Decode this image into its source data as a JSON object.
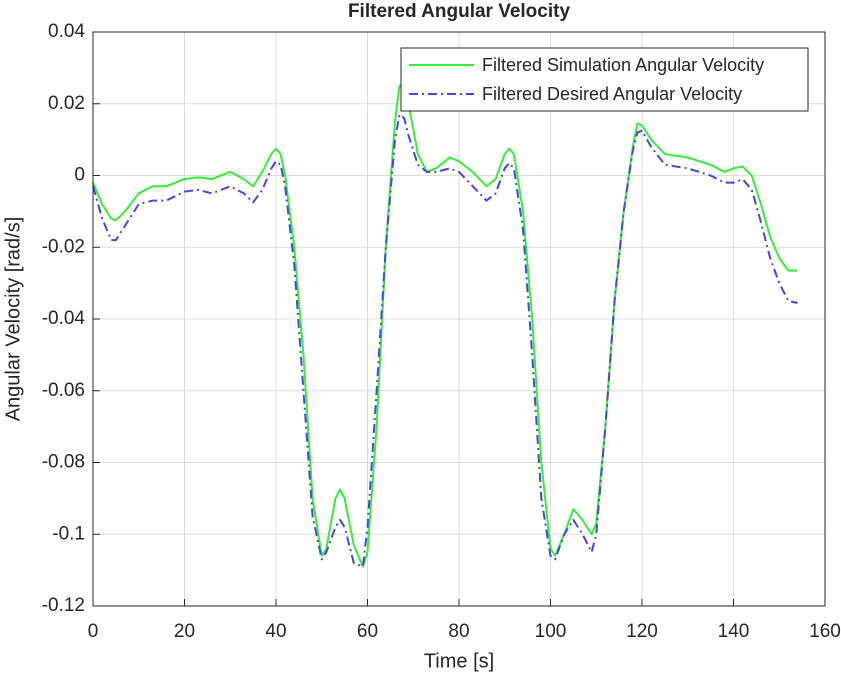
{
  "chart_data": {
    "type": "line",
    "title": "Filtered Angular Velocity",
    "xlabel": "Time [s]",
    "ylabel": "Angular Velocity [rad/s]",
    "x": [
      0,
      2,
      4,
      5,
      7,
      10,
      13,
      16,
      20,
      23,
      26,
      30,
      33,
      35,
      37,
      39,
      40,
      41,
      42,
      44,
      46,
      48,
      50,
      51,
      53,
      54,
      55,
      57,
      59,
      60,
      62,
      64,
      66,
      67,
      68,
      69,
      71,
      73,
      75,
      78,
      80,
      83,
      86,
      88,
      90,
      91,
      92,
      94,
      96,
      98,
      100,
      101,
      103,
      105,
      107,
      109,
      110,
      112,
      114,
      116,
      118,
      119,
      120,
      122,
      125,
      130,
      135,
      138,
      140,
      142,
      144,
      146,
      148,
      150,
      152,
      154
    ],
    "series": [
      {
        "name": "Filtered Simulation Angular Velocity",
        "color": "#33ee33",
        "dash": false,
        "values": [
          -0.002,
          -0.008,
          -0.012,
          -0.0125,
          -0.01,
          -0.005,
          -0.003,
          -0.003,
          -0.001,
          -0.0005,
          -0.001,
          0.001,
          -0.001,
          -0.003,
          0.001,
          0.006,
          0.0075,
          0.006,
          0.0,
          -0.02,
          -0.05,
          -0.09,
          -0.106,
          -0.104,
          -0.09,
          -0.0875,
          -0.09,
          -0.103,
          -0.109,
          -0.105,
          -0.07,
          -0.02,
          0.015,
          0.025,
          0.025,
          0.02,
          0.006,
          0.001,
          0.002,
          0.005,
          0.004,
          0.001,
          -0.003,
          -0.001,
          0.006,
          0.0075,
          0.006,
          -0.01,
          -0.04,
          -0.08,
          -0.104,
          -0.106,
          -0.1,
          -0.093,
          -0.096,
          -0.1,
          -0.097,
          -0.07,
          -0.035,
          -0.01,
          0.008,
          0.0145,
          0.014,
          0.01,
          0.006,
          0.005,
          0.003,
          0.001,
          0.002,
          0.0025,
          0.0,
          -0.008,
          -0.017,
          -0.023,
          -0.0265,
          -0.0265
        ]
      },
      {
        "name": "Filtered Desired Angular Velocity",
        "color": "#4444e8",
        "dash": true,
        "values": [
          -0.003,
          -0.012,
          -0.018,
          -0.018,
          -0.014,
          -0.008,
          -0.007,
          -0.007,
          -0.0045,
          -0.004,
          -0.005,
          -0.003,
          -0.005,
          -0.0075,
          -0.004,
          0.002,
          0.004,
          0.003,
          -0.003,
          -0.025,
          -0.06,
          -0.095,
          -0.107,
          -0.105,
          -0.098,
          -0.096,
          -0.098,
          -0.108,
          -0.109,
          -0.098,
          -0.06,
          -0.02,
          0.01,
          0.017,
          0.016,
          0.011,
          0.003,
          0.001,
          0.001,
          0.002,
          0.001,
          -0.003,
          -0.007,
          -0.005,
          0.002,
          0.0035,
          0.002,
          -0.015,
          -0.05,
          -0.09,
          -0.106,
          -0.107,
          -0.1,
          -0.096,
          -0.1,
          -0.105,
          -0.1,
          -0.07,
          -0.035,
          -0.01,
          0.007,
          0.012,
          0.0125,
          0.008,
          0.003,
          0.002,
          0.0,
          -0.002,
          -0.002,
          -0.001,
          -0.004,
          -0.013,
          -0.023,
          -0.03,
          -0.035,
          -0.0355
        ]
      }
    ],
    "xlim": [
      0,
      160
    ],
    "xticks": [
      0,
      20,
      40,
      60,
      80,
      100,
      120,
      140,
      160
    ],
    "ylim": [
      -0.12,
      0.04
    ],
    "yticks": [
      0.04,
      0.02,
      0,
      -0.02,
      -0.04,
      -0.06,
      -0.08,
      -0.1,
      -0.12
    ],
    "grid": true,
    "legend": "northeast"
  }
}
